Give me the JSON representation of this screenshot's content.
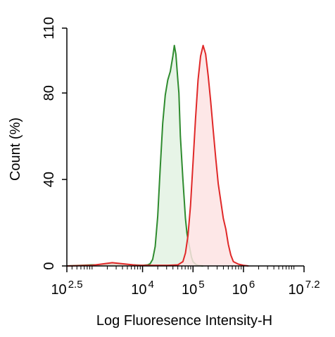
{
  "chart_data": {
    "type": "area",
    "title": "",
    "xlabel": "Log Fluoresence Intensity-H",
    "ylabel": "Count  (%)",
    "x_scale": "log10",
    "xlim": [
      2.5,
      7.2
    ],
    "ylim": [
      0,
      110
    ],
    "x_ticks": [
      {
        "base": "10",
        "exp": "2.5",
        "log": 2.5
      },
      {
        "base": "10",
        "exp": "4",
        "log": 4
      },
      {
        "base": "10",
        "exp": "5",
        "log": 5
      },
      {
        "base": "10",
        "exp": "6",
        "log": 6
      },
      {
        "base": "10",
        "exp": "7.2",
        "log": 7.2
      }
    ],
    "y_ticks": [
      "0",
      "40",
      "80",
      "110"
    ],
    "grid": false,
    "series": [
      {
        "color": "#2e8b2e",
        "fill": "#e3f2e3",
        "log_x": [
          2.5,
          3.0,
          3.2,
          3.5,
          3.8,
          4.0,
          4.1,
          4.15,
          4.2,
          4.25,
          4.3,
          4.35,
          4.4,
          4.45,
          4.5,
          4.55,
          4.6,
          4.63,
          4.66,
          4.68,
          4.7,
          4.72,
          4.75,
          4.8,
          4.85,
          4.88,
          4.92,
          4.97,
          5.0,
          5.05,
          5.1,
          5.2
        ],
        "y": [
          0,
          0.5,
          0.5,
          0.8,
          0.5,
          0.3,
          0.5,
          1.0,
          3.0,
          9.0,
          23.0,
          45.0,
          66.0,
          79.0,
          86.0,
          90.0,
          97.0,
          102.0,
          98.0,
          92.0,
          86.0,
          80.0,
          60.0,
          40.0,
          22.0,
          15.0,
          10.0,
          4.0,
          2.0,
          0.8,
          0.3,
          0
        ]
      },
      {
        "color": "#e02828",
        "fill": "#fde3e3",
        "log_x": [
          2.5,
          3.0,
          3.4,
          3.6,
          3.9,
          4.3,
          4.5,
          4.7,
          4.8,
          4.85,
          4.9,
          4.95,
          5.0,
          5.05,
          5.1,
          5.15,
          5.2,
          5.25,
          5.3,
          5.35,
          5.4,
          5.45,
          5.5,
          5.55,
          5.6,
          5.65,
          5.7,
          5.75,
          5.8,
          5.9,
          6.0,
          6.1
        ],
        "y": [
          0,
          0.3,
          1.5,
          1.0,
          0.3,
          0.3,
          0.3,
          0.5,
          2.0,
          6.0,
          14.0,
          28.0,
          48.0,
          68.0,
          86.0,
          97.0,
          102.0,
          98.0,
          88.0,
          76.0,
          63.0,
          50.0,
          38.0,
          30.0,
          22.0,
          17.0,
          10.0,
          5.0,
          2.0,
          0.8,
          0.3,
          0
        ]
      }
    ]
  }
}
